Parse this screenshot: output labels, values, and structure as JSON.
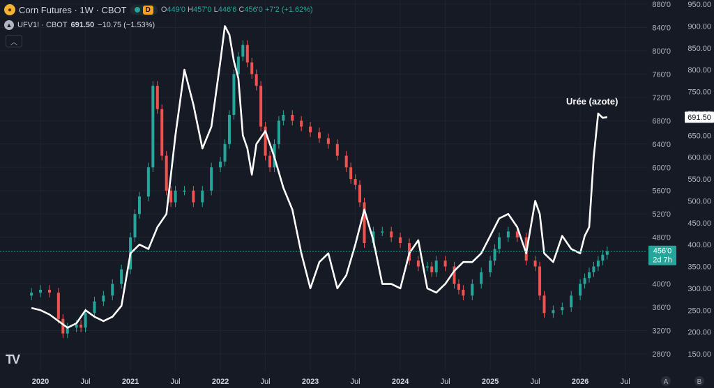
{
  "header": {
    "title": "Corn Futures · 1W · CBOT",
    "badge": "D",
    "ohlc": {
      "o_label": "O",
      "o": "449'0",
      "h_label": "H",
      "h": "457'0",
      "l_label": "L",
      "l": "446'6",
      "c_label": "C",
      "c": "456'0",
      "change": "+7'2 (+1.62%)"
    },
    "overlay_symbol": "UFV1! · CBOT",
    "overlay_price": "691.50",
    "overlay_change": "−10.75 (−1.53%)"
  },
  "logo_text": "TV",
  "colors": {
    "up": "#26a69a",
    "down": "#ef5350",
    "background": "#161a25",
    "line": "#ffffff",
    "grid": "#1f2330"
  },
  "icons": {
    "symbol": "corn-icon",
    "overlay": "ufv-icon",
    "collapse": "chevron-up-icon",
    "logo": "tradingview-logo"
  },
  "chart_data": {
    "type": "line",
    "annotation": "Urée (azote)",
    "x_ticks": [
      "2020",
      "Jul",
      "2021",
      "Jul",
      "2022",
      "Jul",
      "2023",
      "Jul",
      "2024",
      "Jul",
      "2025",
      "Jul",
      "2026",
      "Jul"
    ],
    "left_axis_labels": [
      "880'0",
      "840'0",
      "800'0",
      "760'0",
      "720'0",
      "680'0",
      "640'0",
      "600'0",
      "560'0",
      "520'0",
      "480'0",
      "440'0",
      "400'0",
      "360'0",
      "320'0",
      "280'0"
    ],
    "right_axis_labels": [
      "950.00",
      "900.00",
      "850.00",
      "800.00",
      "750.00",
      "700.00",
      "650.00",
      "600.00",
      "550.00",
      "500.00",
      "450.00",
      "400.00",
      "350.00",
      "300.00",
      "250.00",
      "200.00",
      "150.00"
    ],
    "left_axis_range": [
      280,
      880
    ],
    "right_axis_range": [
      150,
      950
    ],
    "price_badge_corn": "456'0",
    "price_badge_corn_timer": "2d 7h",
    "price_badge_urea": "691.50",
    "axis_footer": [
      "A",
      "B"
    ],
    "series": [
      {
        "axis": "left",
        "style": "candles",
        "x": [
          2019.9,
          2020.0,
          2020.1,
          2020.2,
          2020.25,
          2020.3,
          2020.4,
          2020.45,
          2020.5,
          2020.6,
          2020.7,
          2020.8,
          2020.9,
          2021.0,
          2021.05,
          2021.1,
          2021.2,
          2021.25,
          2021.3,
          2021.35,
          2021.4,
          2021.45,
          2021.5,
          2021.6,
          2021.7,
          2021.8,
          2021.9,
          2022.0,
          2022.05,
          2022.1,
          2022.15,
          2022.2,
          2022.25,
          2022.3,
          2022.35,
          2022.4,
          2022.45,
          2022.5,
          2022.55,
          2022.6,
          2022.65,
          2022.7,
          2022.8,
          2022.9,
          2023.0,
          2023.1,
          2023.2,
          2023.3,
          2023.4,
          2023.45,
          2023.5,
          2023.55,
          2023.6,
          2023.7,
          2023.8,
          2023.9,
          2024.0,
          2024.1,
          2024.2,
          2024.3,
          2024.35,
          2024.4,
          2024.5,
          2024.6,
          2024.65,
          2024.7,
          2024.8,
          2024.9,
          2025.0,
          2025.05,
          2025.1,
          2025.2,
          2025.3,
          2025.4,
          2025.5,
          2025.55,
          2025.6,
          2025.7,
          2025.8,
          2025.9,
          2026.0,
          2026.05,
          2026.1,
          2026.15,
          2026.2,
          2026.25,
          2026.3
        ],
        "values": [
          385,
          390,
          385,
          340,
          315,
          325,
          330,
          325,
          350,
          370,
          380,
          400,
          425,
          480,
          520,
          550,
          600,
          740,
          700,
          620,
          560,
          540,
          560,
          560,
          540,
          560,
          600,
          610,
          640,
          690,
          760,
          790,
          810,
          780,
          760,
          740,
          670,
          620,
          600,
          640,
          680,
          690,
          680,
          670,
          660,
          650,
          640,
          620,
          600,
          580,
          570,
          540,
          470,
          490,
          490,
          480,
          470,
          440,
          430,
          430,
          420,
          440,
          430,
          400,
          390,
          380,
          400,
          420,
          440,
          460,
          480,
          490,
          480,
          440,
          430,
          380,
          350,
          355,
          360,
          380,
          400,
          410,
          420,
          430,
          440,
          450,
          456
        ]
      },
      {
        "axis": "right",
        "style": "line",
        "name": "Urée (azote)",
        "x": [
          2019.9,
          2020.0,
          2020.1,
          2020.2,
          2020.3,
          2020.4,
          2020.5,
          2020.6,
          2020.7,
          2020.8,
          2020.9,
          2021.0,
          2021.1,
          2021.2,
          2021.3,
          2021.4,
          2021.5,
          2021.6,
          2021.7,
          2021.8,
          2021.9,
          2022.0,
          2022.05,
          2022.1,
          2022.15,
          2022.2,
          2022.25,
          2022.3,
          2022.35,
          2022.4,
          2022.5,
          2022.6,
          2022.7,
          2022.8,
          2022.9,
          2023.0,
          2023.1,
          2023.2,
          2023.3,
          2023.4,
          2023.5,
          2023.6,
          2023.7,
          2023.8,
          2023.9,
          2024.0,
          2024.1,
          2024.2,
          2024.3,
          2024.4,
          2024.5,
          2024.6,
          2024.7,
          2024.8,
          2024.9,
          2025.0,
          2025.1,
          2025.2,
          2025.3,
          2025.4,
          2025.5,
          2025.55,
          2025.6,
          2025.7,
          2025.8,
          2025.9,
          2026.0,
          2026.05,
          2026.1,
          2026.15,
          2026.2,
          2026.25,
          2026.3
        ],
        "values": [
          255,
          250,
          240,
          225,
          210,
          220,
          250,
          235,
          225,
          235,
          260,
          380,
          400,
          390,
          440,
          470,
          650,
          800,
          720,
          620,
          670,
          820,
          900,
          880,
          820,
          780,
          650,
          620,
          560,
          630,
          660,
          600,
          530,
          480,
          380,
          300,
          360,
          380,
          300,
          330,
          400,
          480,
          410,
          310,
          310,
          300,
          380,
          410,
          300,
          290,
          310,
          340,
          360,
          360,
          380,
          420,
          460,
          470,
          440,
          380,
          500,
          470,
          380,
          360,
          420,
          390,
          380,
          420,
          440,
          600,
          700,
          690,
          691.5
        ]
      }
    ]
  }
}
